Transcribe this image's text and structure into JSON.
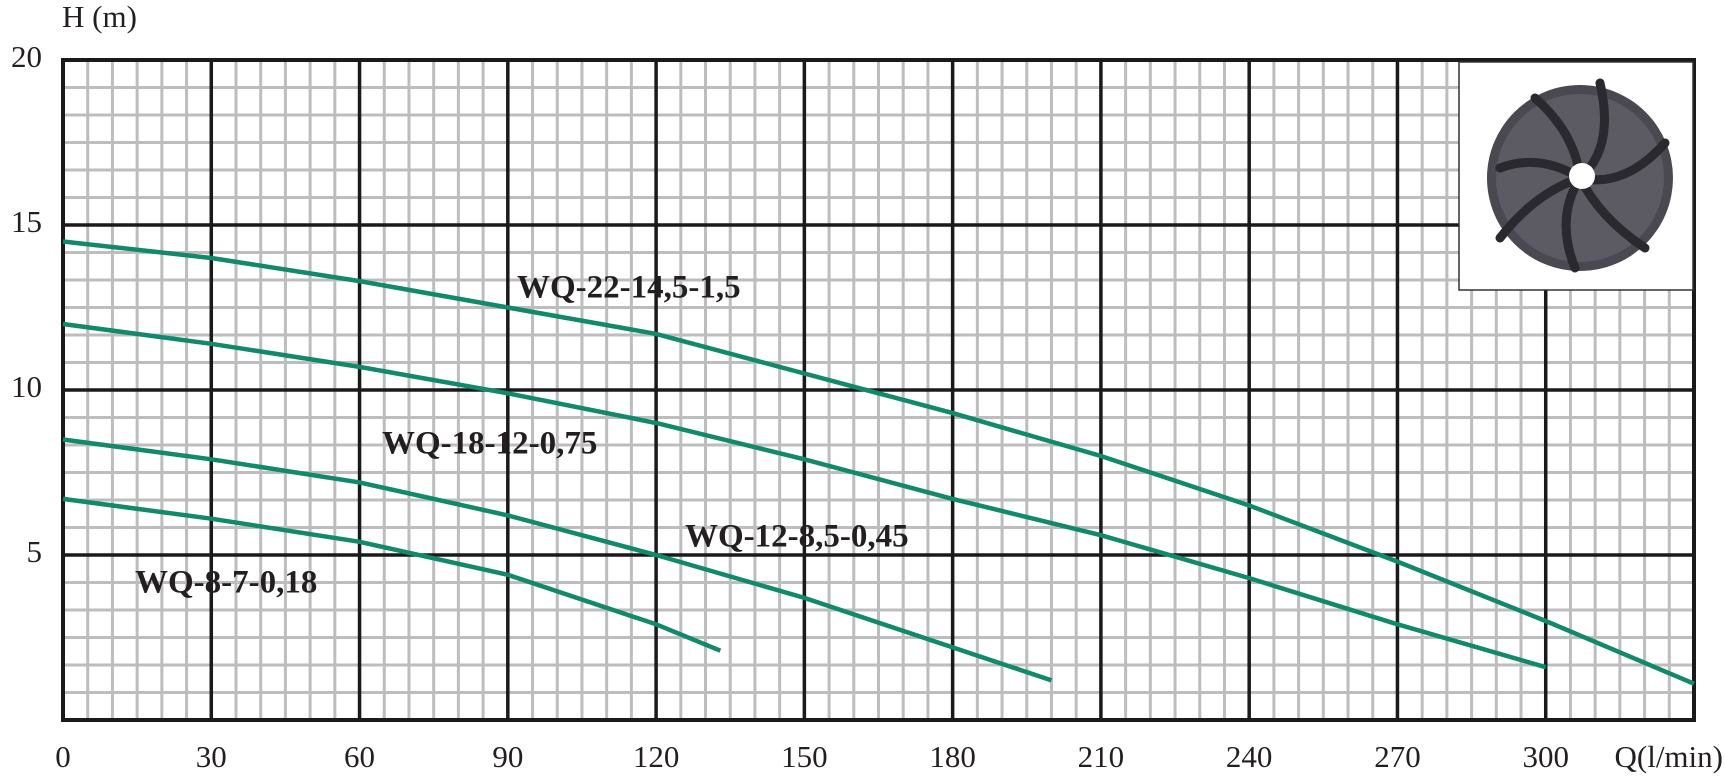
{
  "chart_data": {
    "type": "line",
    "y_label": "H (m)",
    "x_label": "Q(l/min)",
    "xlim": [
      0,
      330
    ],
    "ylim": [
      0,
      20
    ],
    "xticks": [
      0,
      30,
      60,
      90,
      120,
      150,
      180,
      210,
      240,
      270,
      300
    ],
    "yticks": [
      5,
      10,
      15,
      20
    ],
    "grid": true,
    "minor_grid_divisions": 6,
    "series": [
      {
        "name": "WQ-22-14,5-1,5",
        "color": "#11896a",
        "x": [
          0,
          30,
          60,
          90,
          120,
          150,
          180,
          210,
          240,
          270,
          300,
          330
        ],
        "values": [
          14.5,
          14.0,
          13.3,
          12.5,
          11.7,
          10.5,
          9.3,
          8.0,
          6.5,
          4.8,
          3.0,
          1.1
        ]
      },
      {
        "name": "WQ-18-12-0,75",
        "color": "#11896a",
        "x": [
          0,
          30,
          60,
          90,
          120,
          150,
          180,
          210,
          240,
          270,
          300
        ],
        "values": [
          12.0,
          11.4,
          10.7,
          9.9,
          9.0,
          7.9,
          6.7,
          5.6,
          4.3,
          2.9,
          1.6
        ]
      },
      {
        "name": "WQ-12-8,5-0,45",
        "color": "#11896a",
        "x": [
          0,
          30,
          60,
          90,
          120,
          150,
          180,
          200
        ],
        "values": [
          8.5,
          7.9,
          7.2,
          6.2,
          5.0,
          3.7,
          2.2,
          1.2
        ]
      },
      {
        "name": "WQ-8-7-0,18",
        "color": "#11896a",
        "x": [
          0,
          30,
          60,
          90,
          120,
          133
        ],
        "values": [
          6.7,
          6.1,
          5.4,
          4.4,
          2.9,
          2.1
        ]
      }
    ]
  }
}
